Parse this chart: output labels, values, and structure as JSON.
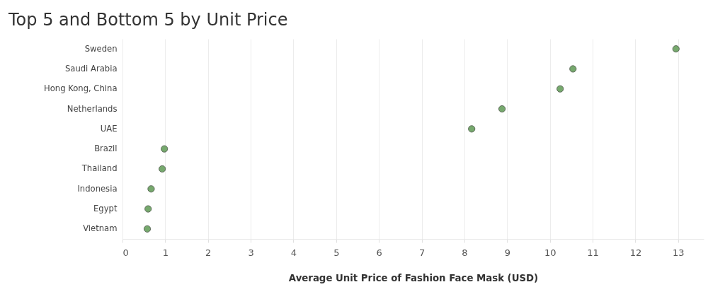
{
  "chart_data": {
    "type": "scatter",
    "title": "Top 5 and Bottom 5 by Unit Price",
    "xlabel": "Average Unit Price of Fashion Face Mask (USD)",
    "orientation": "horizontal",
    "categories": [
      "Sweden",
      "Saudi Arabia",
      "Hong Kong, China",
      "Netherlands",
      "UAE",
      "Brazil",
      "Thailand",
      "Indonesia",
      "Egypt",
      "Vietnam"
    ],
    "series": [
      {
        "color": "#76a96d",
        "values": [
          12.95,
          10.54,
          10.24,
          8.88,
          8.17,
          0.98,
          0.93,
          0.67,
          0.6,
          0.58
        ]
      }
    ],
    "xlim": [
      0,
      13.6
    ],
    "xticks": [
      0,
      1,
      2,
      3,
      4,
      5,
      6,
      7,
      8,
      9,
      10,
      11,
      12,
      13
    ],
    "grid": "x",
    "marker": "circle"
  }
}
